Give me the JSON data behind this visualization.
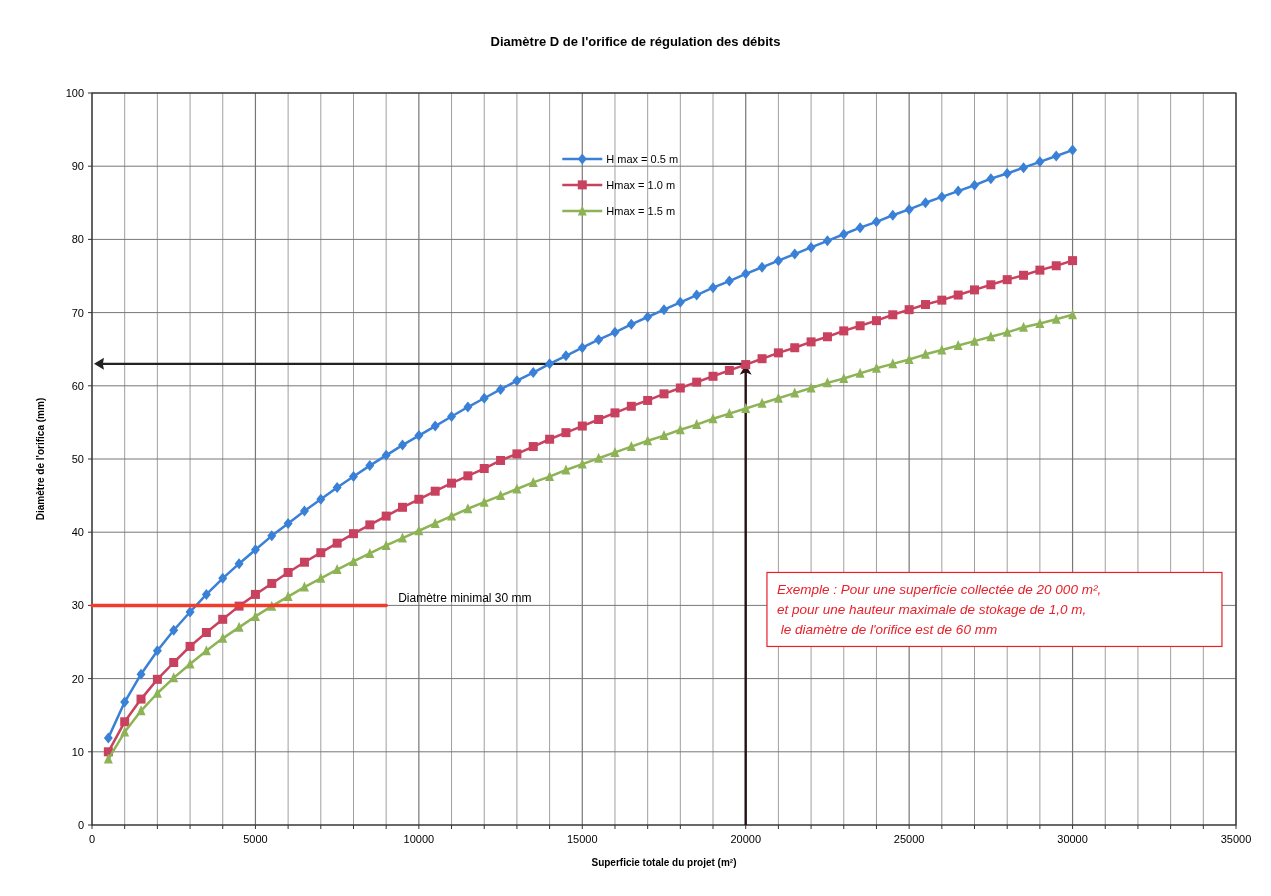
{
  "chart_data": {
    "type": "line",
    "title": "Diamètre D de l'orifice de régulation des débits",
    "xlabel": "Superficie totale du projet (m²)",
    "ylabel": "Diamètre de l'orifica (mm)",
    "xlim": [
      0,
      35000
    ],
    "ylim": [
      0,
      100
    ],
    "xticks": [
      0,
      {
        "value": 1000,
        "label": null
      },
      {
        "value": 2000,
        "label": null
      },
      {
        "value": 3000,
        "label": null
      },
      {
        "value": 4000,
        "label": null
      },
      5000,
      {
        "value": 6000,
        "label": null
      },
      {
        "value": 7000,
        "label": null
      },
      {
        "value": 8000,
        "label": null
      },
      {
        "value": 9000,
        "label": null
      },
      10000,
      {
        "value": 11000,
        "label": null
      },
      {
        "value": 12000,
        "label": null
      },
      {
        "value": 13000,
        "label": null
      },
      {
        "value": 14000,
        "label": null
      },
      15000,
      {
        "value": 16000,
        "label": null
      },
      {
        "value": 17000,
        "label": null
      },
      {
        "value": 18000,
        "label": null
      },
      {
        "value": 19000,
        "label": null
      },
      20000,
      {
        "value": 21000,
        "label": null
      },
      {
        "value": 22000,
        "label": null
      },
      {
        "value": 23000,
        "label": null
      },
      {
        "value": 24000,
        "label": null
      },
      25000,
      {
        "value": 26000,
        "label": null
      },
      {
        "value": 27000,
        "label": null
      },
      {
        "value": 28000,
        "label": null
      },
      {
        "value": 29000,
        "label": null
      },
      30000,
      {
        "value": 31000,
        "label": null
      },
      {
        "value": 32000,
        "label": null
      },
      {
        "value": 33000,
        "label": null
      },
      {
        "value": 34000,
        "label": null
      },
      35000
    ],
    "yticks": [
      0,
      10,
      20,
      30,
      40,
      50,
      60,
      70,
      80,
      90,
      100
    ],
    "grid": true,
    "legend": "top",
    "marker": "diamond",
    "line_style": "solid",
    "x": [
      500,
      1000,
      1500,
      2000,
      2500,
      3000,
      3500,
      4000,
      4500,
      5000,
      5500,
      6000,
      6500,
      7000,
      7500,
      8000,
      8500,
      9000,
      9500,
      10000,
      10500,
      11000,
      11500,
      12000,
      12500,
      13000,
      13500,
      14000,
      14500,
      15000,
      15500,
      16000,
      16500,
      17000,
      17500,
      18000,
      18500,
      19000,
      19500,
      20000,
      20500,
      21000,
      21500,
      22000,
      22500,
      23000,
      23500,
      24000,
      24500,
      25000,
      25500,
      26000,
      26500,
      27000,
      27500,
      28000,
      28500,
      29000,
      29500,
      30000
    ],
    "series": [
      {
        "name": "H max = 0.5 m",
        "color": "#3a80d6",
        "values": [
          11.9,
          16.8,
          20.6,
          23.8,
          26.6,
          29.1,
          31.5,
          33.7,
          35.7,
          37.6,
          39.5,
          41.2,
          42.9,
          44.5,
          46.1,
          47.6,
          49.1,
          50.5,
          51.9,
          53.2,
          54.5,
          55.8,
          57.1,
          58.3,
          59.5,
          60.7,
          61.8,
          63.0,
          64.1,
          65.2,
          66.3,
          67.3,
          68.4,
          69.4,
          70.4,
          71.4,
          72.4,
          73.4,
          74.3,
          75.3,
          76.2,
          77.1,
          78.0,
          78.9,
          79.8,
          80.7,
          81.6,
          82.4,
          83.3,
          84.1,
          85.0,
          85.8,
          86.6,
          87.4,
          88.3,
          89.0,
          89.8,
          90.6,
          91.4,
          92.2
        ]
      },
      {
        "name": "Hmax = 1.0 m",
        "color": "#c8415e",
        "marker": "square",
        "values": [
          10.0,
          14.1,
          17.2,
          19.9,
          22.2,
          24.4,
          26.3,
          28.1,
          29.9,
          31.5,
          33.0,
          34.5,
          35.9,
          37.2,
          38.5,
          39.8,
          41.0,
          42.2,
          43.4,
          44.5,
          45.6,
          46.7,
          47.7,
          48.7,
          49.8,
          50.7,
          51.7,
          52.7,
          53.6,
          54.5,
          55.4,
          56.3,
          57.2,
          58.0,
          58.9,
          59.7,
          60.5,
          61.3,
          62.1,
          62.9,
          63.7,
          64.5,
          65.2,
          66.0,
          66.7,
          67.5,
          68.2,
          68.9,
          69.7,
          70.4,
          71.1,
          71.7,
          72.4,
          73.1,
          73.8,
          74.5,
          75.1,
          75.8,
          76.4,
          77.1
        ]
      },
      {
        "name": "Hmax = 1.5 m",
        "color": "#8db356",
        "marker": "triangle",
        "values": [
          9.0,
          12.7,
          15.6,
          18.0,
          20.1,
          22.0,
          23.8,
          25.5,
          27.0,
          28.5,
          29.9,
          31.2,
          32.5,
          33.7,
          34.9,
          36.0,
          37.1,
          38.2,
          39.2,
          40.2,
          41.2,
          42.2,
          43.2,
          44.1,
          45.0,
          45.9,
          46.8,
          47.6,
          48.5,
          49.3,
          50.1,
          50.9,
          51.7,
          52.5,
          53.2,
          54.0,
          54.7,
          55.5,
          56.2,
          56.9,
          57.6,
          58.3,
          59.0,
          59.7,
          60.4,
          61.0,
          61.7,
          62.4,
          63.0,
          63.6,
          64.3,
          64.9,
          65.5,
          66.1,
          66.7,
          67.3,
          68.0,
          68.5,
          69.1,
          69.7
        ]
      },
      {
        "color": "#f03c2c",
        "marker": "none",
        "x": [
          0,
          9000
        ],
        "values": [
          30,
          30
        ]
      }
    ],
    "annotations": [
      {
        "text": "Diamètre minimal 30 mm",
        "x": 9000,
        "y": 30
      },
      "Exemple : Pour une superficie collectée de 20 000 m², \net pour une hauteur maximale de stokage de 1,0 m,\n le diamètre de l'orifice est de 60 mm"
    ]
  }
}
